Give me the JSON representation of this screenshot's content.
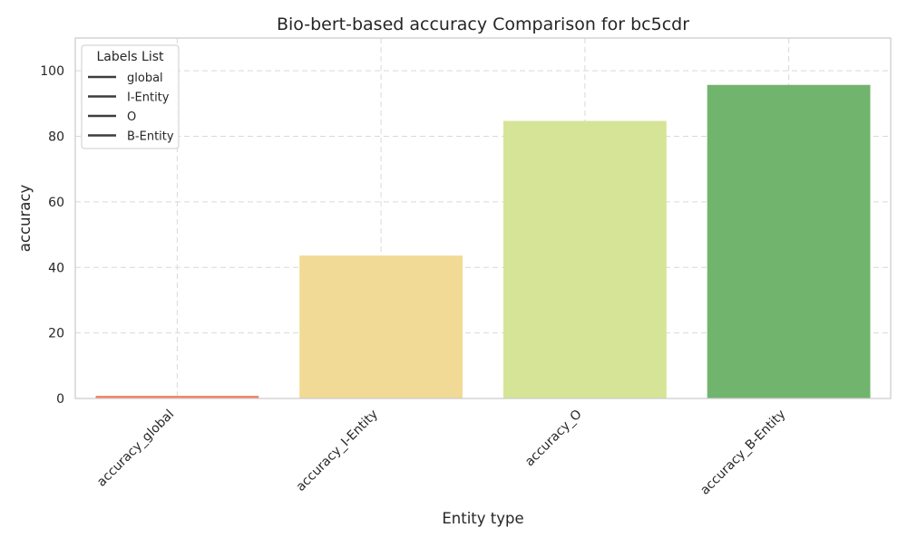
{
  "chart_data": {
    "type": "bar",
    "title": "Bio-bert-based accuracy Comparison for bc5cdr",
    "xlabel": "Entity type",
    "ylabel": "accuracy",
    "categories": [
      "accuracy_global",
      "accuracy_I-Entity",
      "accuracy_O",
      "accuracy_B-Entity"
    ],
    "values": [
      0.8,
      43.6,
      84.7,
      95.7
    ],
    "colors": [
      "#f0825e",
      "#f1da95",
      "#d5e496",
      "#71b46e"
    ],
    "ylim": [
      0,
      110
    ],
    "yticks": [
      0,
      20,
      40,
      60,
      80,
      100
    ],
    "grid": true,
    "legend": {
      "title": "Labels List",
      "placement": "top-left",
      "entries": [
        "global",
        "I-Entity",
        "O",
        "B-Entity"
      ]
    }
  }
}
